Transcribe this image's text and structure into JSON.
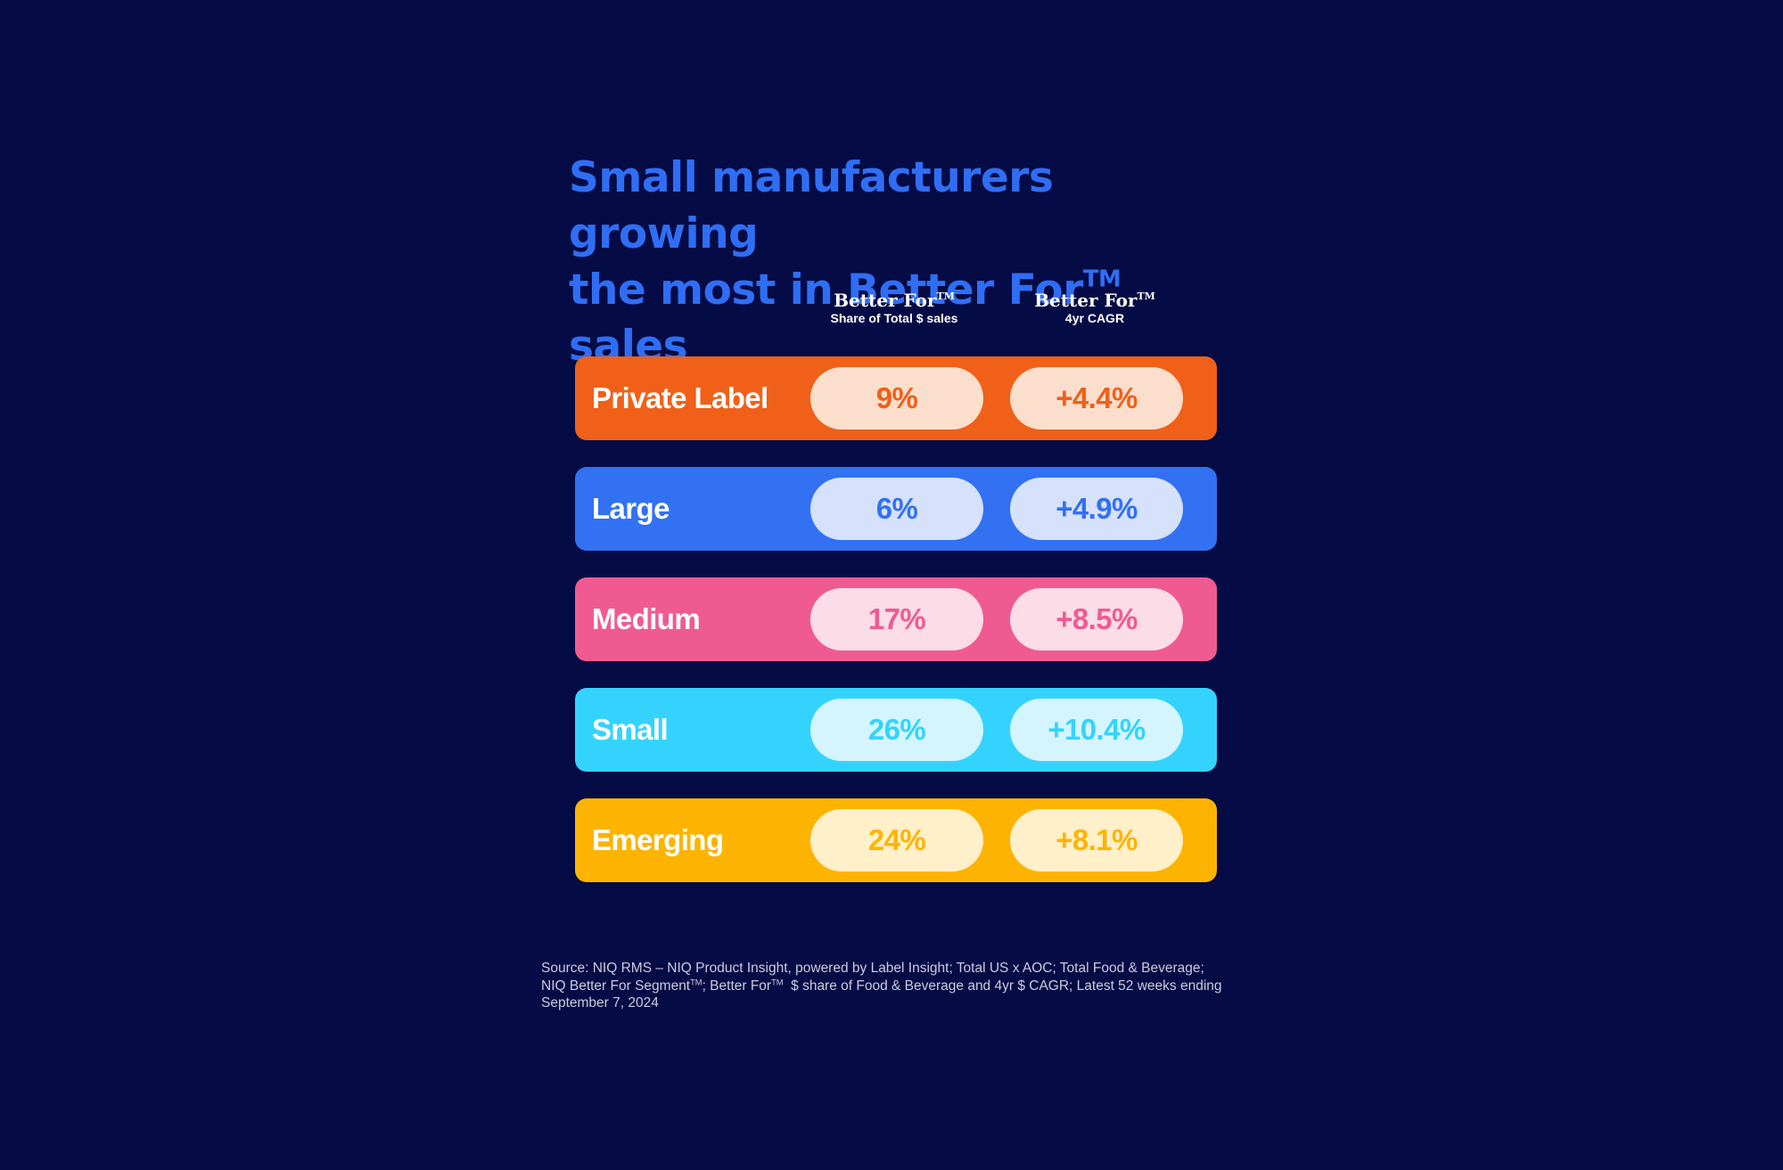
{
  "title": {
    "line1": "Small manufacturers growing",
    "line2_pre": "the most in Better For",
    "line2_tm": "TM",
    "line2_post": " sales"
  },
  "chart_data": {
    "type": "table",
    "columns": [
      {
        "brand": "Better For",
        "tm": "TM",
        "sub": "Share of Total $ sales"
      },
      {
        "brand": "Better For",
        "tm": "TM",
        "sub": "4yr CAGR"
      }
    ],
    "rows": [
      {
        "label": "Private Label",
        "share": 9,
        "share_text": "9%",
        "cagr": 4.4,
        "cagr_text": "+4.4%",
        "color": "#f06018",
        "pill_color": "#fcdecd"
      },
      {
        "label": "Large",
        "share": 6,
        "share_text": "6%",
        "cagr": 4.9,
        "cagr_text": "+4.9%",
        "color": "#3171f2",
        "pill_color": "#d6e1fc"
      },
      {
        "label": "Medium",
        "share": 17,
        "share_text": "17%",
        "cagr": 8.5,
        "cagr_text": "+8.5%",
        "color": "#ef5b91",
        "pill_color": "#fbdce7"
      },
      {
        "label": "Small",
        "share": 26,
        "share_text": "26%",
        "cagr": 10.4,
        "cagr_text": "+10.4%",
        "color": "#34d3fe",
        "pill_color": "#d4f5ff"
      },
      {
        "label": "Emerging",
        "share": 24,
        "share_text": "24%",
        "cagr": 8.1,
        "cagr_text": "+8.1%",
        "color": "#fdb401",
        "pill_color": "#fff0c9"
      }
    ]
  },
  "source": {
    "line1": "Source: NIQ RMS – NIQ Product Insight, powered by Label Insight; Total US x AOC; Total Food & Beverage;",
    "line2_a": "NIQ Better For Segment",
    "line2_tm1": "TM",
    "line2_b": "; Better For",
    "line2_tm2": "TM",
    "line2_c": "  $ share of Food & Beverage and 4yr $ CAGR; Latest 52 weeks ending",
    "line3": "September 7, 2024"
  },
  "colors": {
    "background": "#050b45",
    "title": "#2f6ef4"
  }
}
